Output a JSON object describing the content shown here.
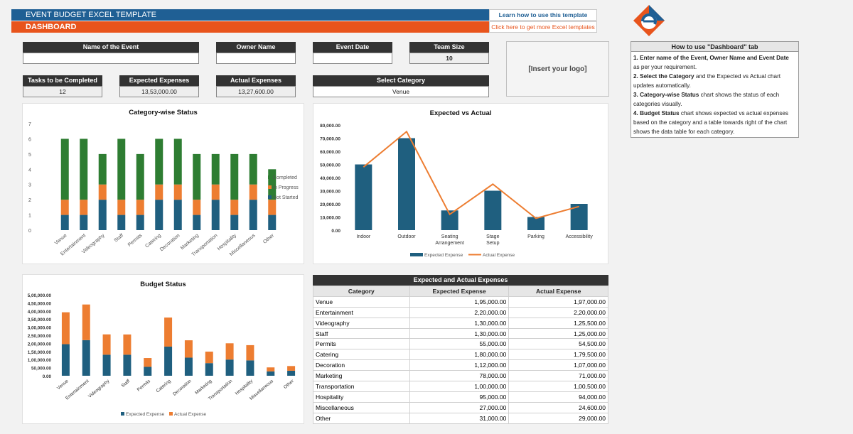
{
  "header": {
    "title": "EVENT BUDGET EXCEL TEMPLATE",
    "subtitle": "DASHBOARD",
    "link_learn": "Learn how to use this template",
    "link_more": "Click here to get more Excel templates"
  },
  "fields": {
    "event_name_label": "Name of the Event",
    "event_name_value": "",
    "owner_label": "Owner Name",
    "owner_value": "",
    "date_label": "Event Date",
    "date_value": "",
    "team_label": "Team Size",
    "team_value": "10",
    "tasks_label": "Tasks to be Completed",
    "tasks_value": "12",
    "expected_label": "Expected Expenses",
    "expected_value": "13,53,000.00",
    "actual_label": "Actual Expenses",
    "actual_value": "13,27,600.00",
    "category_label": "Select Category",
    "category_value": "Venue"
  },
  "logo_placeholder": "[Insert your logo]",
  "howto": {
    "title": "How to use \"Dashboard\" tab",
    "steps": [
      {
        "bold": "1. Enter name of the Event, Owner Name and Event Date",
        "rest": " as per your requirement."
      },
      {
        "bold": "2. Select the Category",
        "rest": " and the Expected vs Actual chart updates automatically."
      },
      {
        "bold": "3. Category-wise Status",
        "rest": " chart shows the status of each categories visually."
      },
      {
        "bold": "4. Budget Status",
        "rest": " chart shows expected vs actual expenses based on the category and a table towards right of the chart shows the data table for each category."
      }
    ]
  },
  "colors": {
    "completed": "#2e7d32",
    "in_progress": "#ed7d31",
    "not_started": "#1f5f7f",
    "expected": "#1f5f7f",
    "actual": "#ed7d31"
  },
  "chart_data": [
    {
      "type": "bar",
      "stacked": true,
      "title": "Category-wise Status",
      "categories": [
        "Venue",
        "Entertainment",
        "Videography",
        "Staff",
        "Permits",
        "Catering",
        "Decoration",
        "Marketing",
        "Transportation",
        "Hospitality",
        "Miscellaneous",
        "Other"
      ],
      "series": [
        {
          "name": "Not Started",
          "values": [
            1,
            1,
            2,
            1,
            1,
            2,
            2,
            1,
            2,
            1,
            2,
            1
          ]
        },
        {
          "name": "In Progress",
          "values": [
            1,
            1,
            1,
            1,
            1,
            1,
            1,
            1,
            1,
            1,
            1,
            1
          ]
        },
        {
          "name": "Completed",
          "values": [
            4,
            4,
            2,
            4,
            3,
            3,
            3,
            3,
            2,
            3,
            2,
            2
          ]
        }
      ],
      "ylim": [
        0,
        7
      ],
      "yticks": [
        "0",
        "1",
        "2",
        "3",
        "4",
        "5",
        "6",
        "7"
      ],
      "legend": "right",
      "grid": false
    },
    {
      "type": "bar",
      "title": "Expected vs Actual",
      "categories": [
        "Indoor",
        "Outdoor",
        "Seating Arrangement",
        "Stage Setup",
        "Parking",
        "Accessibility"
      ],
      "series": [
        {
          "name": "Expected Expense",
          "type": "bar",
          "values": [
            50000,
            70000,
            15000,
            30000,
            10000,
            20000
          ]
        },
        {
          "name": "Actual Expense",
          "type": "line",
          "values": [
            48000,
            75000,
            12000,
            35000,
            9000,
            18000
          ]
        }
      ],
      "ylim": [
        0,
        80000
      ],
      "yticks": [
        "0.00",
        "10,000.00",
        "20,000.00",
        "30,000.00",
        "40,000.00",
        "50,000.00",
        "60,000.00",
        "70,000.00",
        "80,000.00"
      ],
      "legend": "bottom",
      "grid": false
    },
    {
      "type": "bar",
      "stacked": true,
      "title": "Budget Status",
      "categories": [
        "Venue",
        "Entertainment",
        "Videography",
        "Staff",
        "Permits",
        "Catering",
        "Decoration",
        "Marketing",
        "Transportation",
        "Hospitality",
        "Miscellaneous",
        "Other"
      ],
      "series": [
        {
          "name": "Expected Expense",
          "values": [
            195000,
            220000,
            130000,
            130000,
            55000,
            180000,
            112000,
            78000,
            100000,
            95000,
            27000,
            31000
          ]
        },
        {
          "name": "Actual Expense",
          "values": [
            197000,
            220000,
            125500,
            125000,
            54500,
            179500,
            107000,
            71000,
            100500,
            94000,
            24600,
            29000
          ]
        }
      ],
      "ylim": [
        0,
        500000
      ],
      "yticks": [
        "0.00",
        "50,000.00",
        "1,00,000.00",
        "1,50,000.00",
        "2,00,000.00",
        "2,50,000.00",
        "3,00,000.00",
        "3,50,000.00",
        "4,00,000.00",
        "4,50,000.00",
        "5,00,000.00"
      ],
      "legend": "bottom",
      "grid": false
    },
    {
      "type": "table",
      "title": "Expected and Actual Expenses",
      "columns": [
        "Category",
        "Expected Expense",
        "Actual Expense"
      ],
      "rows": [
        [
          "Venue",
          "1,95,000.00",
          "1,97,000.00"
        ],
        [
          "Entertainment",
          "2,20,000.00",
          "2,20,000.00"
        ],
        [
          "Videography",
          "1,30,000.00",
          "1,25,500.00"
        ],
        [
          "Staff",
          "1,30,000.00",
          "1,25,000.00"
        ],
        [
          "Permits",
          "55,000.00",
          "54,500.00"
        ],
        [
          "Catering",
          "1,80,000.00",
          "1,79,500.00"
        ],
        [
          "Decoration",
          "1,12,000.00",
          "1,07,000.00"
        ],
        [
          "Marketing",
          "78,000.00",
          "71,000.00"
        ],
        [
          "Transportation",
          "1,00,000.00",
          "1,00,500.00"
        ],
        [
          "Hospitality",
          "95,000.00",
          "94,000.00"
        ],
        [
          "Miscellaneous",
          "27,000.00",
          "24,600.00"
        ],
        [
          "Other",
          "31,000.00",
          "29,000.00"
        ]
      ]
    }
  ]
}
